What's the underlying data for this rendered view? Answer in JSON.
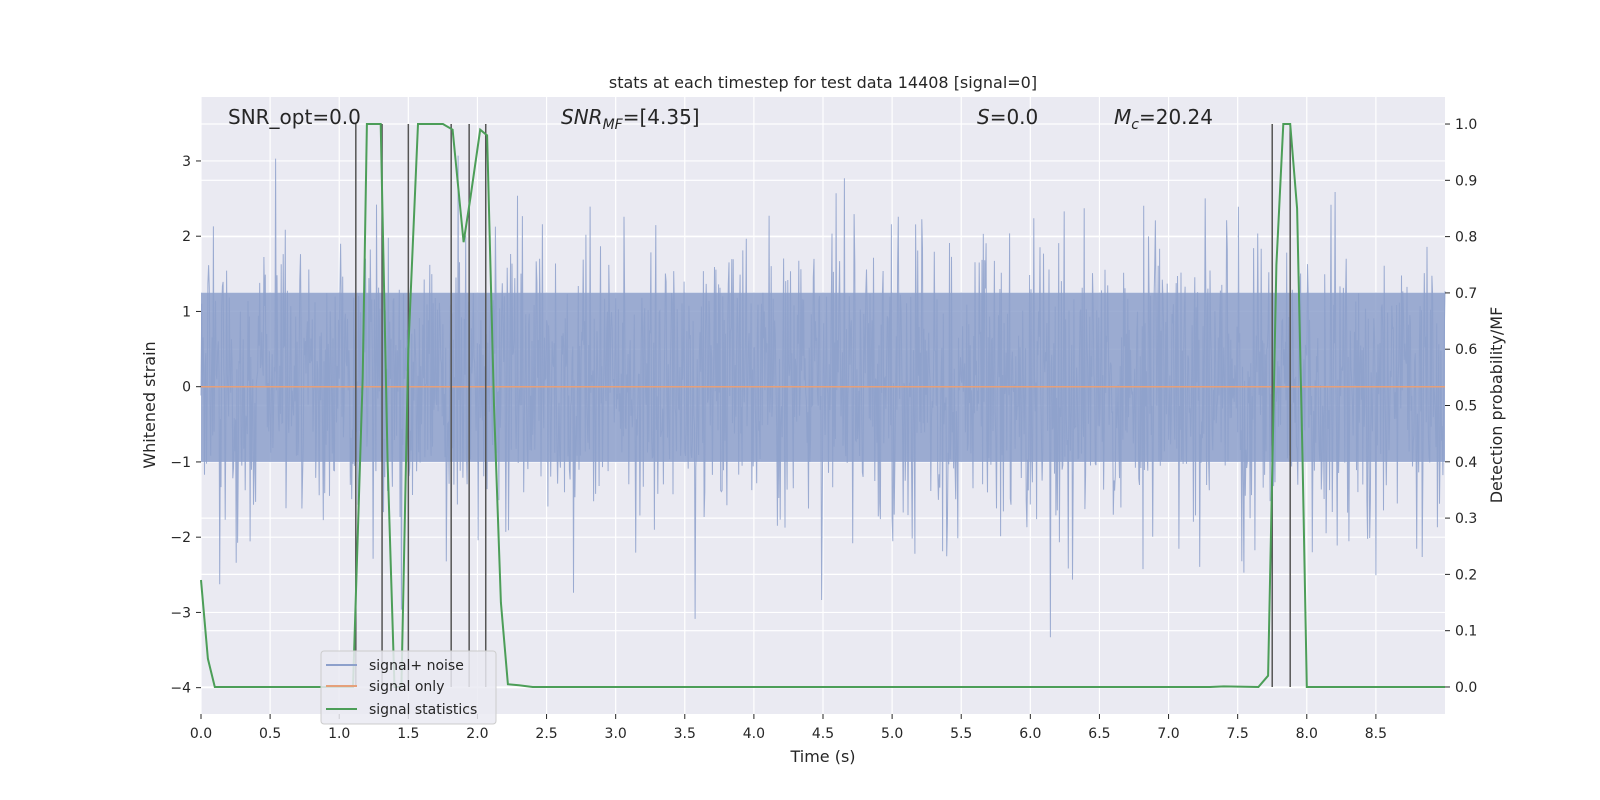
{
  "chart_data": {
    "type": "line",
    "title": "stats at each timestep for test data 14408 [signal=0]",
    "xlabel": "Time (s)",
    "ylabel": "Whitened strain",
    "y2label": "Detection probability/MF",
    "xlim": [
      0.0,
      9.0
    ],
    "ylim": [
      -4.35,
      3.85
    ],
    "y2lim": [
      -0.048,
      1.048
    ],
    "x_ticks": [
      "0.0",
      "0.5",
      "1.0",
      "1.5",
      "2.0",
      "2.5",
      "3.0",
      "3.5",
      "4.0",
      "4.5",
      "5.0",
      "5.5",
      "6.0",
      "6.5",
      "7.0",
      "7.5",
      "8.0",
      "8.5"
    ],
    "y_ticks": [
      "3",
      "2",
      "1",
      "0",
      "−1",
      "−2",
      "−3",
      "−4"
    ],
    "y2_ticks": [
      "1.0",
      "0.9",
      "0.8",
      "0.7",
      "0.6",
      "0.5",
      "0.4",
      "0.3",
      "0.2",
      "0.1",
      "0.0"
    ],
    "grid": true,
    "legend_position": "lower-left",
    "annotations": {
      "snr_opt": "SNR_opt=0.0",
      "snr_mf_base": "SNR",
      "snr_mf_sub": "MF",
      "snr_mf_value": "=[4.35]",
      "s_label": "S",
      "s_value": "=0.0",
      "mc_base": "M",
      "mc_sub": "c",
      "mc_value": "=20.24"
    },
    "series": [
      {
        "name": "signal+ noise",
        "color": "#8da0cb",
        "description_type": "noise",
        "band_sigma": 1.0,
        "spike_max": 3.4,
        "spike_min": -4.0
      },
      {
        "name": "signal only",
        "color": "#e5a07a",
        "x": [
          0.0,
          9.0
        ],
        "y": [
          0.0,
          0.0
        ]
      },
      {
        "name": "signal statistics",
        "color": "#4c9e58",
        "axis": "right",
        "x": [
          0.0,
          0.05,
          0.1,
          1.0,
          1.1,
          1.17,
          1.2,
          1.3,
          1.35,
          1.4,
          1.45,
          1.5,
          1.57,
          1.65,
          1.75,
          1.82,
          1.9,
          1.95,
          2.02,
          2.07,
          2.12,
          2.17,
          2.22,
          2.3,
          2.4,
          7.3,
          7.4,
          7.65,
          7.72,
          7.78,
          7.83,
          7.88,
          7.93,
          7.97,
          8.0,
          9.0
        ],
        "y": [
          0.19,
          0.05,
          0.0,
          0.0,
          0.0,
          0.55,
          1.0,
          1.0,
          0.4,
          0.0,
          0.0,
          0.6,
          1.0,
          1.0,
          1.0,
          0.99,
          0.79,
          0.87,
          0.99,
          0.98,
          0.5,
          0.15,
          0.005,
          0.003,
          0.0,
          0.0,
          0.001,
          0.0,
          0.02,
          0.75,
          1.0,
          1.0,
          0.85,
          0.4,
          0.0,
          0.0
        ]
      }
    ],
    "vertical_markers": [
      1.12,
      1.31,
      1.5,
      1.81,
      1.94,
      2.06,
      7.75,
      7.88
    ]
  }
}
